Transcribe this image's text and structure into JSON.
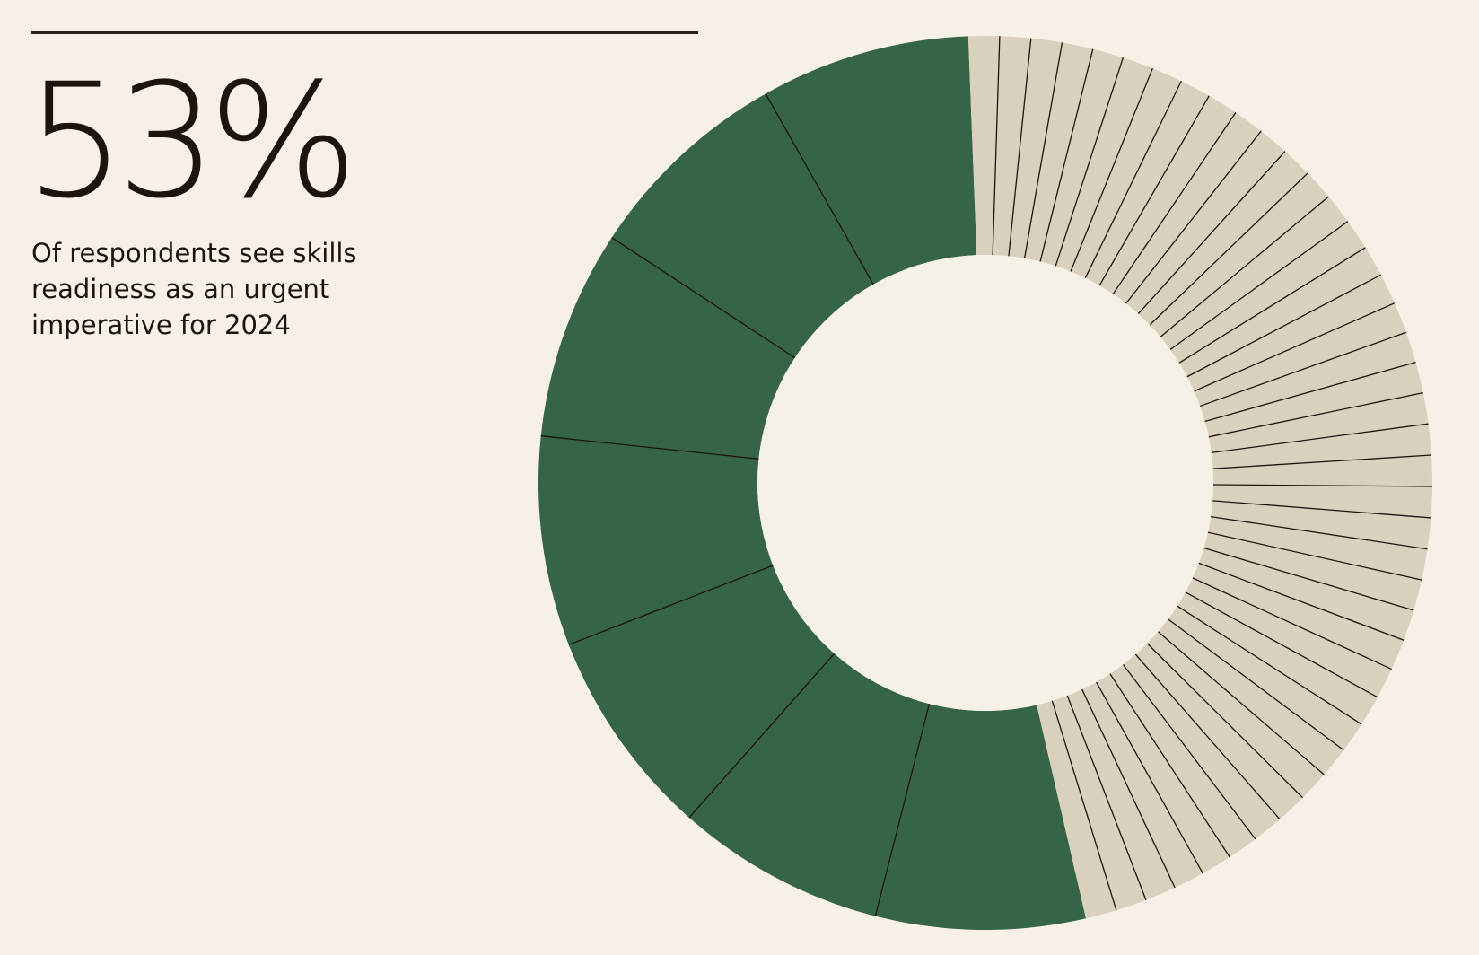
{
  "stat": {
    "value": "53%",
    "caption_lines": [
      "Of respondents see skills",
      "readiness as an urgent",
      "imperative for 2024"
    ]
  },
  "colors": {
    "background": "#f7f0e6",
    "highlight": "#366446",
    "remainder": "#d9d1bd",
    "inner_hole": "#f6f1e6",
    "divider": "#1d140e",
    "text": "#1d140e"
  },
  "chart_data": {
    "type": "pie",
    "title": "",
    "variant": "donut",
    "values": [
      53,
      47
    ],
    "colors": [
      "#366446",
      "#d9d1bd"
    ],
    "segment_breakdown": {
      "highlight_wedges": 7,
      "remainder_wedges": 42
    },
    "start": "bottom, running clockwise through left and top"
  }
}
